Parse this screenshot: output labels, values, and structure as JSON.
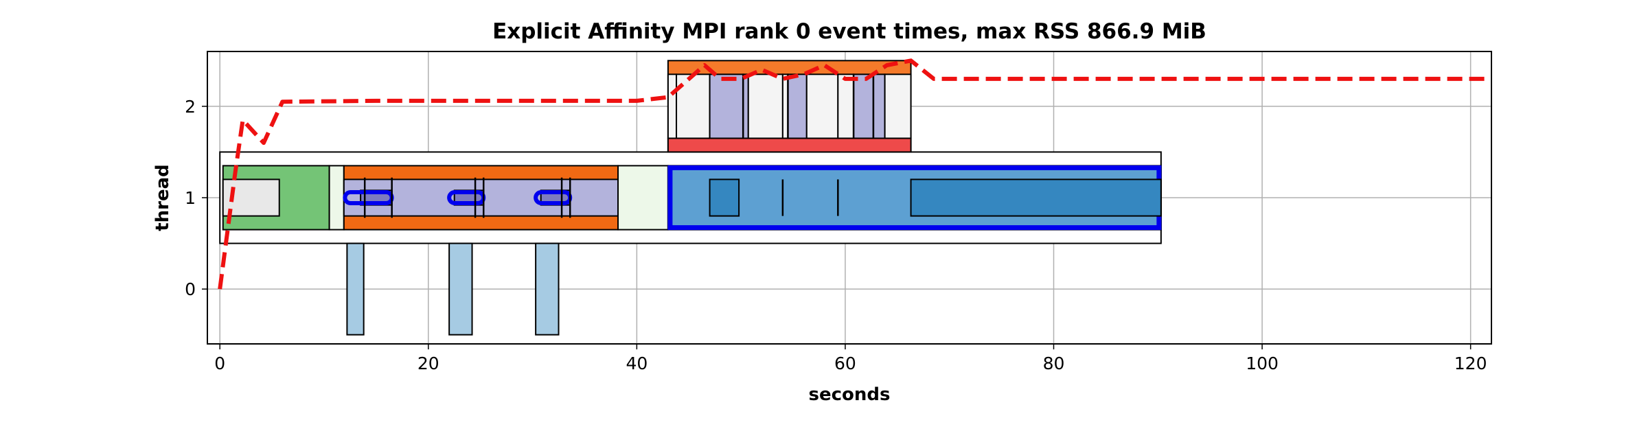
{
  "chart_data": {
    "type": "timeline",
    "title": "Explicit Affinity MPI rank 0 event times, max RSS 866.9 MiB",
    "xlabel": "seconds",
    "ylabel": "thread",
    "xlim": [
      -1.2,
      122
    ],
    "ylim": [
      -0.6,
      2.6
    ],
    "xticks": [
      0,
      20,
      40,
      60,
      80,
      100,
      120
    ],
    "yticks": [
      0,
      1,
      2
    ],
    "grid": true,
    "colors": {
      "green": "#74c476",
      "pale_green": "#edf8e9",
      "light_gray": "#e8e8e8",
      "orange": "#f16913",
      "lavender": "#b3b3dc",
      "purple": "#7e7cbf",
      "blue": "#5da0d2",
      "mid_blue": "#3587c0",
      "highlight_blue": "#0000ee",
      "orange_top": "#f47a2a",
      "red": "#ee4a4a",
      "near_white": "#f4f4f4",
      "light_blue": "#a6cbe3",
      "rss_red": "#ee1111"
    },
    "events": [
      {
        "x0": 0,
        "x1": 90.3,
        "y0": 0.5,
        "y1": 1.5,
        "fill": "#ffffff"
      },
      {
        "x0": 0.3,
        "x1": 10.5,
        "y0": 0.65,
        "y1": 1.35,
        "fill": "green"
      },
      {
        "x0": 0.3,
        "x1": 5.7,
        "y0": 0.8,
        "y1": 1.2,
        "fill": "light_gray"
      },
      {
        "x0": 10.5,
        "x1": 11.9,
        "y0": 0.65,
        "y1": 1.35,
        "fill": "pale_green"
      },
      {
        "x0": 11.9,
        "x1": 38.2,
        "y0": 0.65,
        "y1": 1.35,
        "fill": "orange"
      },
      {
        "x0": 11.9,
        "x1": 38.2,
        "y0": 0.8,
        "y1": 1.2,
        "fill": "lavender"
      },
      {
        "x0": 13.5,
        "x1": 16.5,
        "y0": 0.92,
        "y1": 1.08,
        "fill": "purple"
      },
      {
        "x0": 22.5,
        "x1": 25.3,
        "y0": 0.92,
        "y1": 1.08,
        "fill": "purple"
      },
      {
        "x0": 30.8,
        "x1": 33.6,
        "y0": 0.92,
        "y1": 1.08,
        "fill": "purple"
      },
      {
        "x0": 38.2,
        "x1": 43.0,
        "y0": 0.65,
        "y1": 1.35,
        "fill": "pale_green"
      },
      {
        "x0": 43.0,
        "x1": 90.3,
        "y0": 0.65,
        "y1": 1.35,
        "fill": "blue",
        "highlight": true
      },
      {
        "x0": 47.0,
        "x1": 49.8,
        "y0": 0.8,
        "y1": 1.2,
        "fill": "mid_blue"
      },
      {
        "x0": 66.3,
        "x1": 90.3,
        "y0": 0.8,
        "y1": 1.2,
        "fill": "mid_blue"
      },
      {
        "x0": 12.2,
        "x1": 13.8,
        "y0": -0.5,
        "y1": 0.5,
        "fill": "light_blue"
      },
      {
        "x0": 22.0,
        "x1": 24.2,
        "y0": -0.5,
        "y1": 0.5,
        "fill": "light_blue"
      },
      {
        "x0": 30.3,
        "x1": 32.5,
        "y0": -0.5,
        "y1": 0.5,
        "fill": "light_blue"
      },
      {
        "x0": 43.0,
        "x1": 66.3,
        "y0": 1.5,
        "y1": 2.5,
        "fill": "orange_top"
      },
      {
        "x0": 43.0,
        "x1": 66.3,
        "y0": 1.5,
        "y1": 1.65,
        "fill": "red"
      },
      {
        "x0": 43.0,
        "x1": 43.8,
        "y0": 1.65,
        "y1": 2.35,
        "fill": "near_white"
      },
      {
        "x0": 43.8,
        "x1": 47.0,
        "y0": 1.65,
        "y1": 2.35,
        "fill": "near_white"
      },
      {
        "x0": 47.0,
        "x1": 50.2,
        "y0": 1.65,
        "y1": 2.35,
        "fill": "lavender"
      },
      {
        "x0": 50.2,
        "x1": 50.7,
        "y0": 1.65,
        "y1": 2.35,
        "fill": "lavender"
      },
      {
        "x0": 50.7,
        "x1": 54.0,
        "y0": 1.65,
        "y1": 2.35,
        "fill": "near_white"
      },
      {
        "x0": 54.0,
        "x1": 54.5,
        "y0": 1.65,
        "y1": 2.35,
        "fill": "near_white"
      },
      {
        "x0": 54.5,
        "x1": 56.3,
        "y0": 1.65,
        "y1": 2.35,
        "fill": "lavender"
      },
      {
        "x0": 56.3,
        "x1": 59.3,
        "y0": 1.65,
        "y1": 2.35,
        "fill": "near_white"
      },
      {
        "x0": 59.3,
        "x1": 60.8,
        "y0": 1.65,
        "y1": 2.35,
        "fill": "near_white"
      },
      {
        "x0": 60.8,
        "x1": 62.7,
        "y0": 1.65,
        "y1": 2.35,
        "fill": "lavender"
      },
      {
        "x0": 62.7,
        "x1": 63.8,
        "y0": 1.65,
        "y1": 2.35,
        "fill": "lavender"
      },
      {
        "x0": 63.8,
        "x1": 66.3,
        "y0": 1.65,
        "y1": 2.35,
        "fill": "near_white"
      }
    ],
    "small_outlines": [
      {
        "x0": 12.0,
        "x1": 16.5,
        "y0": 0.94,
        "y1": 1.06
      },
      {
        "x0": 22.0,
        "x1": 25.3,
        "y0": 0.94,
        "y1": 1.06
      },
      {
        "x0": 30.3,
        "x1": 33.6,
        "y0": 0.94,
        "y1": 1.06
      }
    ],
    "markers": [
      {
        "x": 13.9,
        "y0": 0.78,
        "y1": 1.22
      },
      {
        "x": 16.5,
        "y0": 0.78,
        "y1": 1.22
      },
      {
        "x": 24.5,
        "y0": 0.78,
        "y1": 1.22
      },
      {
        "x": 25.3,
        "y0": 0.78,
        "y1": 1.22
      },
      {
        "x": 32.8,
        "y0": 0.78,
        "y1": 1.22
      },
      {
        "x": 33.6,
        "y0": 0.78,
        "y1": 1.22
      },
      {
        "x": 54.0,
        "y0": 0.8,
        "y1": 1.2
      },
      {
        "x": 59.3,
        "y0": 0.8,
        "y1": 1.2
      },
      {
        "x": 50.2,
        "y0": 1.65,
        "y1": 2.35
      },
      {
        "x": 54.5,
        "y0": 1.65,
        "y1": 2.35
      },
      {
        "x": 60.8,
        "y0": 1.65,
        "y1": 2.35
      },
      {
        "x": 62.7,
        "y0": 1.65,
        "y1": 2.35
      }
    ],
    "rss_series": {
      "x": [
        0,
        1.5,
        2.2,
        4.2,
        6.0,
        15.0,
        40.0,
        43.0,
        46.5,
        48.0,
        50.0,
        52.0,
        54.0,
        56.0,
        58.0,
        60.0,
        62.0,
        64.0,
        66.3,
        68.5,
        122.0
      ],
      "y": [
        0.0,
        1.3,
        1.85,
        1.6,
        2.05,
        2.06,
        2.06,
        2.1,
        2.45,
        2.3,
        2.3,
        2.4,
        2.3,
        2.35,
        2.45,
        2.3,
        2.3,
        2.45,
        2.5,
        2.3,
        2.3
      ]
    }
  }
}
